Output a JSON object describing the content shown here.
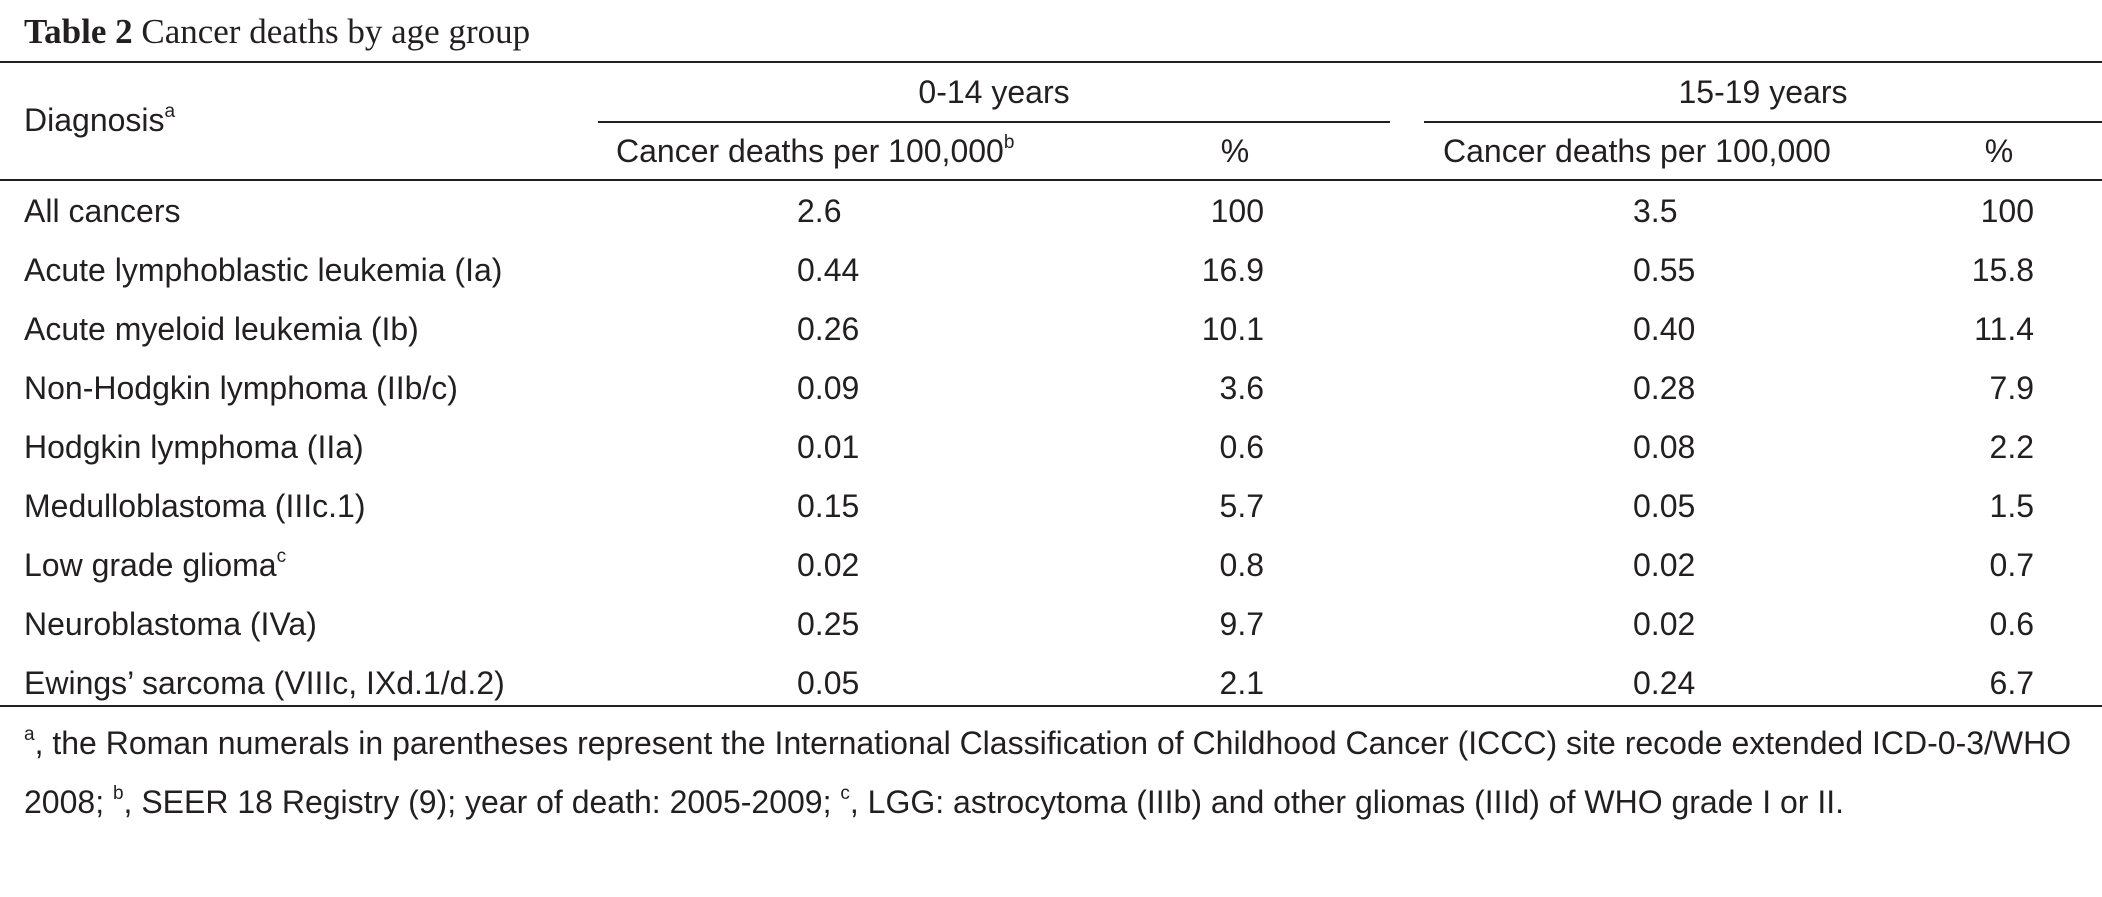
{
  "caption": {
    "label": "Table 2",
    "title": "Cancer deaths by age group"
  },
  "header": {
    "diagnosis": "Diagnosis",
    "diagnosis_sup": "a",
    "group1": "0-14 years",
    "group2": "15-19 years",
    "g1_rate": "Cancer deaths per 100,000",
    "g1_rate_sup": "b",
    "g1_pct": "%",
    "g2_rate": "Cancer deaths per 100,000",
    "g2_pct": "%"
  },
  "rows": [
    {
      "diagnosis": "All cancers",
      "sup": "",
      "r1": "2.6",
      "p1": "100",
      "r2": "3.5",
      "p2": "100"
    },
    {
      "diagnosis": "Acute lymphoblastic leukemia (Ia)",
      "sup": "",
      "r1": "0.44",
      "p1": "16.9",
      "r2": "0.55",
      "p2": "15.8"
    },
    {
      "diagnosis": "Acute myeloid leukemia (Ib)",
      "sup": "",
      "r1": "0.26",
      "p1": "10.1",
      "r2": "0.40",
      "p2": "11.4"
    },
    {
      "diagnosis": "Non-Hodgkin lymphoma (IIb/c)",
      "sup": "",
      "r1": "0.09",
      "p1": "3.6",
      "r2": "0.28",
      "p2": "7.9"
    },
    {
      "diagnosis": "Hodgkin lymphoma (IIa)",
      "sup": "",
      "r1": "0.01",
      "p1": "0.6",
      "r2": "0.08",
      "p2": "2.2"
    },
    {
      "diagnosis": "Medulloblastoma (IIIc.1)",
      "sup": "",
      "r1": "0.15",
      "p1": "5.7",
      "r2": "0.05",
      "p2": "1.5"
    },
    {
      "diagnosis": "Low grade glioma",
      "sup": "c",
      "r1": "0.02",
      "p1": "0.8",
      "r2": "0.02",
      "p2": "0.7"
    },
    {
      "diagnosis": "Neuroblastoma (IVa)",
      "sup": "",
      "r1": "0.25",
      "p1": "9.7",
      "r2": "0.02",
      "p2": "0.6"
    },
    {
      "diagnosis": "Ewings’ sarcoma (VIIIc, IXd.1/d.2)",
      "sup": "",
      "r1": "0.05",
      "p1": "2.1",
      "r2": "0.24",
      "p2": "6.7"
    }
  ],
  "footnote": {
    "a_mark": "a",
    "a_text": ", the Roman numerals in parentheses represent the International Classification of Childhood Cancer (ICCC) site recode extended ICD-0-3/WHO 2008; ",
    "b_mark": "b",
    "b_text": ", SEER 18 Registry (9); year of death: 2005-2009; ",
    "c_mark": "c",
    "c_text": ", LGG: astrocytoma (IIIb) and other gliomas (IIId) of WHO grade I or II."
  }
}
